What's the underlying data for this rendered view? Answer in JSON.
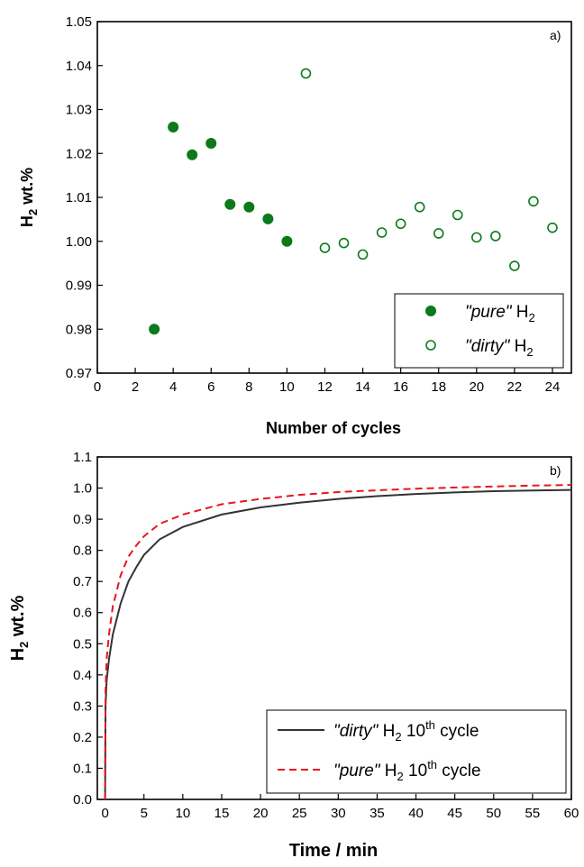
{
  "chart_data": [
    {
      "type": "scatter",
      "panel_label": "a)",
      "xlabel": "Number of cycles",
      "ylabel": "H2 wt.%",
      "xlim": [
        0,
        25
      ],
      "ylim": [
        0.97,
        1.05
      ],
      "xticks": [
        "0",
        "2",
        "4",
        "6",
        "8",
        "10",
        "12",
        "14",
        "16",
        "18",
        "20",
        "22",
        "24"
      ],
      "yticks": [
        "0.97",
        "0.98",
        "0.99",
        "1.00",
        "1.01",
        "1.02",
        "1.03",
        "1.04",
        "1.05"
      ],
      "grid": false,
      "legend_position": "bottom-right",
      "series": [
        {
          "name": "\"pure\" H2",
          "legend_main": "\"pure\"",
          "legend_gas": "H",
          "legend_gas_sub": "2",
          "marker": "filled-circle",
          "color": "#0a7a1a",
          "points": [
            [
              3,
              0.98
            ],
            [
              4,
              1.026
            ],
            [
              5,
              1.0197
            ],
            [
              6,
              1.0223
            ],
            [
              7,
              1.0084
            ],
            [
              8,
              1.0078
            ],
            [
              9,
              1.0051
            ],
            [
              10,
              1.0
            ]
          ]
        },
        {
          "name": "\"dirty\" H2",
          "legend_main": "\"dirty\"",
          "legend_gas": "H",
          "legend_gas_sub": "2",
          "marker": "open-circle",
          "color": "#0a7a1a",
          "points": [
            [
              11,
              1.0382
            ],
            [
              12,
              0.9985
            ],
            [
              13,
              0.9996
            ],
            [
              14,
              0.997
            ],
            [
              15,
              1.002
            ],
            [
              16,
              1.004
            ],
            [
              17,
              1.0078
            ],
            [
              18,
              1.0018
            ],
            [
              19,
              1.006
            ],
            [
              20,
              1.0009
            ],
            [
              21,
              1.0012
            ],
            [
              22,
              0.9944
            ],
            [
              23,
              1.0091
            ],
            [
              24,
              1.0031
            ]
          ]
        }
      ]
    },
    {
      "type": "line",
      "panel_label": "b)",
      "xlabel": "Time / min",
      "ylabel": "H2 wt.%",
      "xlim": [
        -1,
        60
      ],
      "ylim": [
        0,
        1.1
      ],
      "xticks": [
        "0",
        "5",
        "10",
        "15",
        "20",
        "25",
        "30",
        "35",
        "40",
        "45",
        "50",
        "55",
        "60"
      ],
      "yticks": [
        "0.0",
        "0.1",
        "0.2",
        "0.3",
        "0.4",
        "0.5",
        "0.6",
        "0.7",
        "0.8",
        "0.9",
        "1.0",
        "1.1"
      ],
      "grid": false,
      "legend_position": "bottom-right",
      "series": [
        {
          "name": "\"dirty\" H2 10th cycle",
          "legend_main": "\"dirty\"",
          "legend_gas": "H",
          "legend_gas_sub": "2",
          "legend_num": "10",
          "legend_sup": "th",
          "legend_rest": "cycle",
          "style": "solid",
          "color": "#333333",
          "points": [
            [
              0,
              0
            ],
            [
              0.05,
              0.3
            ],
            [
              0.2,
              0.38
            ],
            [
              0.5,
              0.45
            ],
            [
              1,
              0.53
            ],
            [
              2,
              0.63
            ],
            [
              3,
              0.7
            ],
            [
              4,
              0.745
            ],
            [
              5,
              0.785
            ],
            [
              7,
              0.835
            ],
            [
              10,
              0.875
            ],
            [
              15,
              0.915
            ],
            [
              20,
              0.938
            ],
            [
              25,
              0.953
            ],
            [
              30,
              0.965
            ],
            [
              35,
              0.974
            ],
            [
              40,
              0.981
            ],
            [
              45,
              0.986
            ],
            [
              50,
              0.99
            ],
            [
              55,
              0.992
            ],
            [
              60,
              0.994
            ]
          ]
        },
        {
          "name": "\"pure\" H2 10th cycle",
          "legend_main": "\"pure\"",
          "legend_gas": "H",
          "legend_gas_sub": "2",
          "legend_num": "10",
          "legend_sup": "th",
          "legend_rest": "cycle",
          "style": "dashed",
          "color": "#e8161c",
          "points": [
            [
              0,
              0
            ],
            [
              0.05,
              0.35
            ],
            [
              0.2,
              0.45
            ],
            [
              0.5,
              0.53
            ],
            [
              1,
              0.62
            ],
            [
              2,
              0.72
            ],
            [
              3,
              0.78
            ],
            [
              4,
              0.815
            ],
            [
              5,
              0.845
            ],
            [
              7,
              0.885
            ],
            [
              10,
              0.915
            ],
            [
              15,
              0.948
            ],
            [
              20,
              0.965
            ],
            [
              25,
              0.978
            ],
            [
              30,
              0.987
            ],
            [
              35,
              0.993
            ],
            [
              40,
              0.998
            ],
            [
              45,
              1.002
            ],
            [
              50,
              1.005
            ],
            [
              55,
              1.008
            ],
            [
              60,
              1.01
            ]
          ]
        }
      ]
    }
  ]
}
